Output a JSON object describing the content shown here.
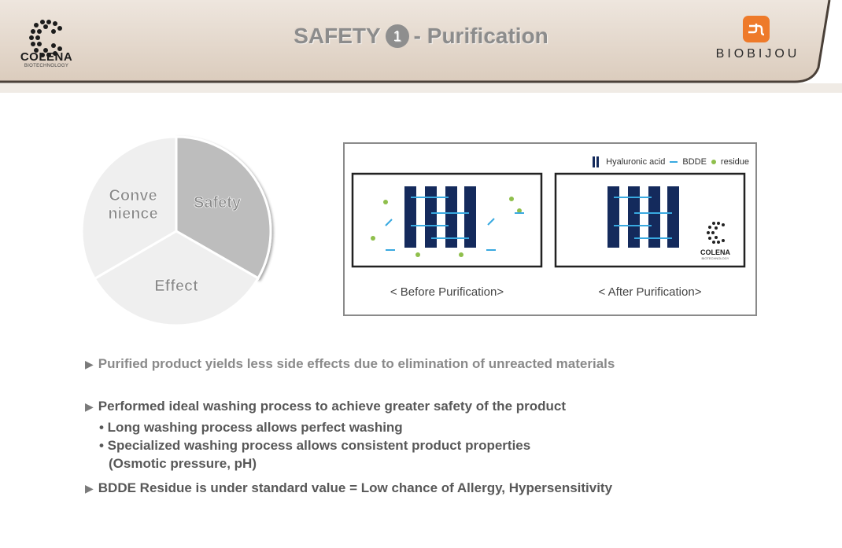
{
  "header": {
    "title_main": "SAFETY",
    "title_number": "1",
    "title_suffix": "- Purification",
    "left_logo": {
      "name": "COLENA",
      "sub": "BIOTECHNOLOGY"
    },
    "right_logo": {
      "name": "BIOBIJOU"
    }
  },
  "pie": {
    "segments": [
      {
        "label": "Safety",
        "fraction": 0.333,
        "color": "#bdbdbd"
      },
      {
        "label": "Effect",
        "fraction": 0.333,
        "color": "#efefef"
      },
      {
        "label": "Conve nience",
        "line1": "Conve",
        "line2": "nience",
        "fraction": 0.334,
        "color": "#efefef"
      }
    ]
  },
  "diagram": {
    "legend": {
      "hyaluronic": "Hyaluronic acid",
      "bdde": "BDDE",
      "residue": "residue"
    },
    "before_caption": "< Before Purification>",
    "after_caption": "< After Purification>",
    "logo_name": "COLENA",
    "logo_sub": "BIOTECHNOLOGY",
    "colors": {
      "hyaluronic": "#142a5c",
      "bdde": "#39a9e0",
      "residue": "#8fbf4c"
    }
  },
  "bullets": {
    "b1": "Purified product yields less side effects due to elimination of unreacted materials",
    "b2": "Performed ideal washing process to achieve greater safety of the product",
    "b2_sub1": "• Long washing process allows perfect washing",
    "b2_sub2": "• Specialized washing process allows consistent product properties",
    "b2_sub2_cont": "(Osmotic pressure, pH)",
    "b3": "BDDE Residue is under standard value = Low chance of Allergy, Hypersensitivity"
  }
}
